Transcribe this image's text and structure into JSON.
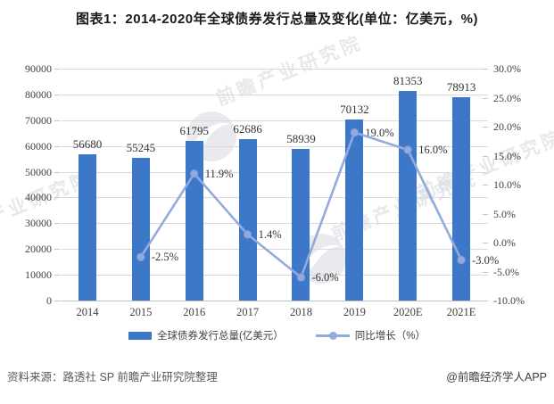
{
  "title": "图表1：2014-2020年全球债券发行总量及变化(单位：亿美元，%)",
  "legend": {
    "bar_label": "全球债券发行总量(亿美元）",
    "line_label": "同比增长（%）"
  },
  "footer": {
    "source": "资料来源：路透社 SP 前瞻产业研究院整理",
    "credit": "@前瞻经济学人APP"
  },
  "watermark_text": "前瞻产业研究院",
  "colors": {
    "bar": "#3C78C7",
    "line": "#92ABDE",
    "line_marker_stroke": "#7E99D4",
    "grid": "#DADADA",
    "axis_line": "#C2C2C2",
    "tick": "#C6C6C6",
    "axis_text": "#3F3F3F",
    "data_label": "#333333",
    "title_text": "#1A1A1A",
    "legend_text": "#3F3F3F",
    "source_text": "#595959",
    "credit_text": "#3F3F3F",
    "watermark": "#D3D7DE"
  },
  "chart_data": {
    "type": "bar+line",
    "title": "图表1：2014-2020年全球债券发行总量及变化(单位：亿美元，%)",
    "categories": [
      "2014",
      "2015",
      "2016",
      "2017",
      "2018",
      "2019",
      "2020E",
      "2021E"
    ],
    "series": [
      {
        "name": "全球债券发行总量(亿美元）",
        "type": "bar",
        "axis": "left",
        "values": [
          56680,
          55245,
          61795,
          62686,
          58939,
          70132,
          81353,
          78913
        ],
        "data_labels": [
          "56680",
          "55245",
          "61795",
          "62686",
          "58939",
          "70132",
          "81353",
          "78913"
        ]
      },
      {
        "name": "同比增长（%）",
        "type": "line",
        "axis": "right",
        "values": [
          null,
          -2.5,
          11.9,
          1.4,
          -6.0,
          19.0,
          16.0,
          -3.0
        ],
        "data_labels": [
          null,
          "-2.5%",
          "11.9%",
          "1.4%",
          "-6.0%",
          "19.0%",
          "16.0%",
          "-3.0%"
        ]
      }
    ],
    "left_axis": {
      "min": 0,
      "max": 90000,
      "step": 10000,
      "tick_labels": [
        "90000",
        "80000",
        "70000",
        "60000",
        "50000",
        "40000",
        "30000",
        "20000",
        "10000",
        "0"
      ]
    },
    "right_axis": {
      "min": -10,
      "max": 30,
      "step": 5,
      "tick_labels": [
        "30.0%",
        "25.0%",
        "20.0%",
        "15.0%",
        "10.0%",
        "5.0%",
        "0.0%",
        "-5.0%",
        "-10.0%"
      ]
    },
    "grid": "horizontal",
    "legend_position": "bottom"
  }
}
